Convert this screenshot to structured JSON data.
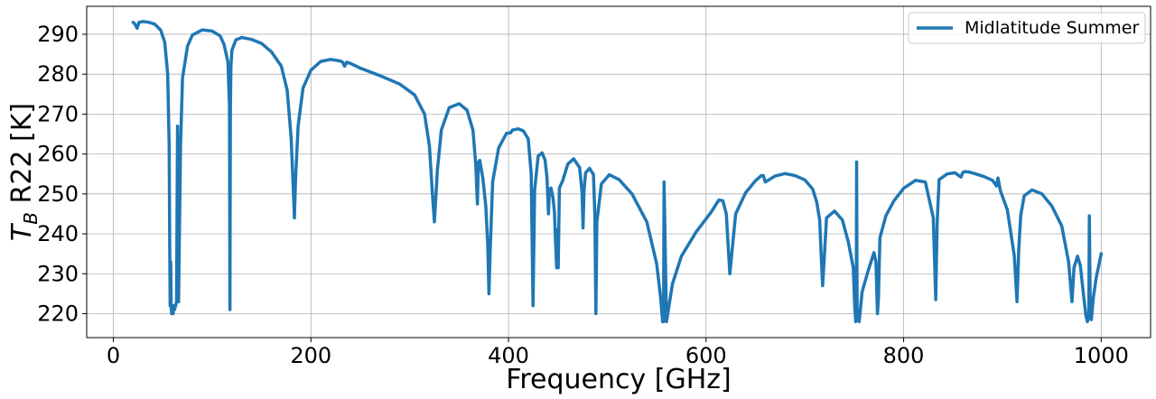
{
  "chart_data": {
    "type": "line",
    "xlabel": "Frequency [GHz]",
    "ylabel_main": "T",
    "ylabel_sub": "B",
    "ylabel_rest": " R22 [K]",
    "xlim": [
      -27,
      1050
    ],
    "ylim": [
      214,
      297
    ],
    "xticks": [
      0,
      200,
      400,
      600,
      800,
      1000
    ],
    "yticks": [
      220,
      230,
      240,
      250,
      260,
      270,
      280,
      290
    ],
    "grid": true,
    "legend_position": "top-right",
    "series": [
      {
        "name": "Midlatitude Summer",
        "color": "#1f77b4",
        "x": [
          20,
          22,
          24,
          26,
          30,
          36,
          42,
          48,
          52,
          55,
          56.5,
          57,
          57.5,
          58,
          58.5,
          59,
          59.5,
          60,
          60.5,
          61,
          62,
          63,
          64,
          65,
          66,
          68,
          70,
          75,
          80,
          90,
          100,
          108,
          112,
          116,
          117.5,
          118,
          118.5,
          119,
          120,
          124,
          130,
          140,
          150,
          160,
          170,
          176,
          180,
          182,
          183.3,
          184.5,
          187,
          192,
          200,
          210,
          220,
          230,
          232,
          234,
          236,
          240,
          250,
          270,
          290,
          305,
          315,
          320,
          323,
          325,
          328,
          332,
          340,
          350,
          358,
          364,
          367,
          368.5,
          369.5,
          371,
          374,
          377,
          379,
          380.2,
          381.5,
          384,
          390,
          398,
          402,
          404,
          410,
          415,
          420,
          423,
          424.8,
          426.5,
          430,
          434,
          437,
          439,
          440.5,
          441.5,
          443,
          445,
          446.5,
          448,
          448.8,
          449.5,
          450.3,
          451.5,
          455,
          460,
          466,
          472,
          474.5,
          475.5,
          476.5,
          478,
          482,
          486,
          487.5,
          488.5,
          489.5,
          494,
          502,
          512,
          525,
          540,
          550,
          554,
          556,
          556.9,
          557.5,
          560,
          566,
          575,
          590,
          605,
          613,
          617,
          620.5,
          624,
          630,
          640,
          650,
          656,
          658,
          660,
          670,
          680,
          690,
          700,
          708,
          712,
          715,
          716.5,
          718,
          722,
          730,
          738,
          744,
          749,
          750.5,
          751.5,
          752,
          752.4,
          753,
          755,
          758,
          764,
          770,
          772,
          773.5,
          774.5,
          776,
          782,
          790,
          800,
          812,
          822,
          830,
          832.5,
          834,
          836,
          844,
          852,
          858,
          860,
          862,
          866,
          872,
          882,
          890,
          894,
          895.5,
          898,
          905,
          912,
          914.8,
          916.5,
          918.5,
          922,
          930,
          940,
          950,
          960,
          967,
          970.5,
          972.5,
          976,
          979,
          982,
          984.5,
          986,
          987.5,
          988,
          989,
          990,
          992,
          995,
          1000
        ],
        "y": [
          293,
          292.5,
          291.5,
          293,
          293.2,
          293,
          292.5,
          291,
          288,
          280,
          262,
          238,
          222,
          233,
          222,
          220,
          222,
          221,
          220,
          222,
          221,
          222,
          223,
          267,
          223,
          262,
          279,
          287,
          289.8,
          291.1,
          290.8,
          289.6,
          287.5,
          283,
          272,
          221,
          271,
          282,
          286,
          288.6,
          289.2,
          288.7,
          287.7,
          285.6,
          282,
          276,
          264,
          252,
          244,
          254,
          267,
          276.5,
          281,
          283.2,
          283.7,
          283.3,
          283,
          282,
          283,
          282.7,
          281.5,
          279.6,
          277.5,
          274.8,
          270,
          262,
          250,
          243,
          256,
          266,
          271.6,
          272.6,
          271,
          266,
          257,
          247.5,
          258,
          258.4,
          254,
          247,
          237,
          225,
          236,
          253,
          261.5,
          265.2,
          265.3,
          266,
          266.3,
          265.8,
          263.8,
          255,
          222,
          251,
          259.5,
          260.3,
          258.5,
          254,
          245,
          251,
          251.5,
          249,
          245.5,
          236,
          231.5,
          241,
          231.5,
          251.5,
          253.4,
          257.5,
          258.8,
          256.6,
          250.4,
          241.5,
          251,
          255.3,
          256.4,
          254.9,
          244.5,
          220,
          243,
          252.5,
          254.8,
          253.6,
          250,
          243,
          232.5,
          224,
          218,
          218,
          253,
          218,
          227.5,
          234.4,
          240.5,
          245.4,
          248.5,
          248.3,
          245,
          230,
          245,
          250.3,
          253.3,
          254.6,
          254.6,
          253,
          254.5,
          255.1,
          254.6,
          253.5,
          251.2,
          248,
          243.5,
          235,
          227,
          244,
          245.7,
          243.5,
          238,
          231.5,
          222,
          218,
          219,
          258,
          219,
          218,
          225.5,
          230.7,
          235.3,
          233,
          220,
          224,
          239,
          244.5,
          248.2,
          251.4,
          253.4,
          253,
          244,
          223.5,
          243,
          253.6,
          255,
          255.3,
          254.2,
          255.4,
          255.6,
          255.5,
          255.1,
          254.3,
          253.4,
          252,
          254,
          250.8,
          246,
          234.5,
          223,
          236,
          244.5,
          249.5,
          251,
          250,
          247,
          242,
          233,
          223,
          231.5,
          234.4,
          232,
          225,
          219.5,
          218,
          219,
          244.5,
          219,
          218.5,
          224,
          229,
          235
        ]
      }
    ]
  }
}
